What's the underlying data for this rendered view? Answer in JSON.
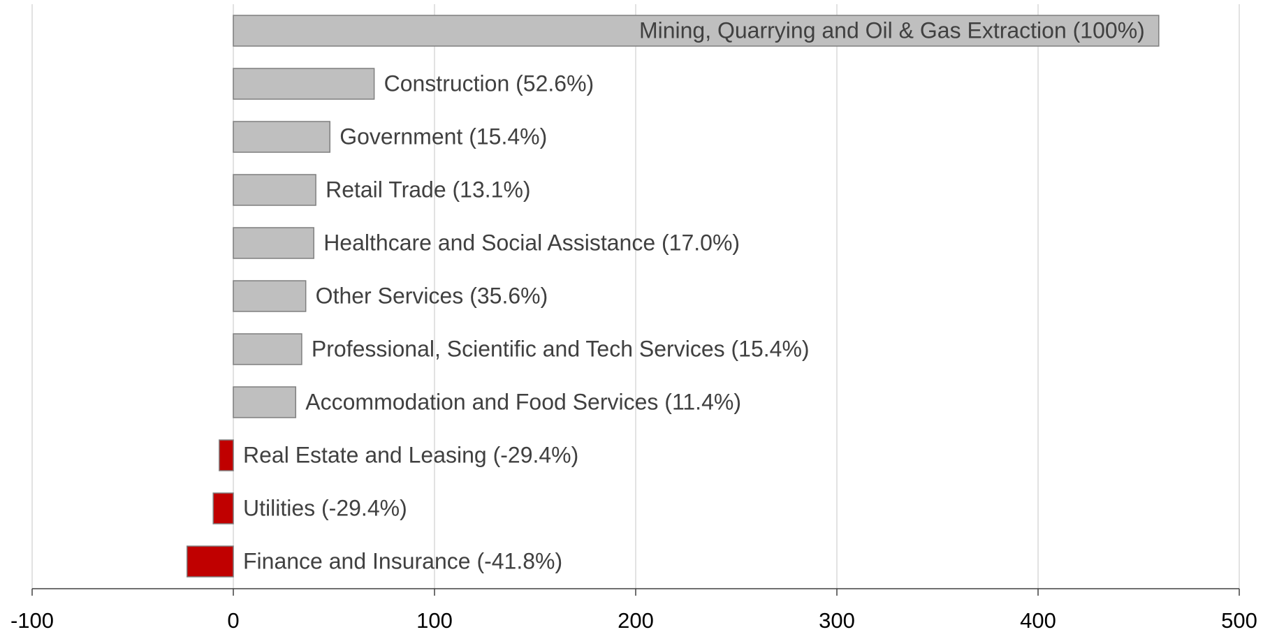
{
  "chart_data": {
    "type": "barh",
    "categories": [
      "Mining, Quarrying and Oil & Gas Extraction (100%)",
      "Construction (52.6%)",
      "Government (15.4%)",
      "Retail Trade (13.1%)",
      "Healthcare and Social Assistance (17.0%)",
      "Other Services (35.6%)",
      "Professional, Scientific and Tech Services (15.4%)",
      "Accommodation and Food Services (11.4%)",
      "Real Estate and Leasing (-29.4%)",
      "Utilities (-29.4%)",
      "Finance and Insurance (-41.8%)"
    ],
    "values": [
      460,
      70,
      48,
      41,
      40,
      36,
      34,
      31,
      -7,
      -10,
      -23
    ],
    "colors": [
      "#bfbfbf",
      "#bfbfbf",
      "#bfbfbf",
      "#bfbfbf",
      "#bfbfbf",
      "#bfbfbf",
      "#bfbfbf",
      "#bfbfbf",
      "#c00000",
      "#c00000",
      "#c00000"
    ],
    "xlim": [
      -100,
      500
    ],
    "xticks": [
      -100,
      0,
      100,
      200,
      300,
      400,
      500
    ],
    "grid": true
  }
}
